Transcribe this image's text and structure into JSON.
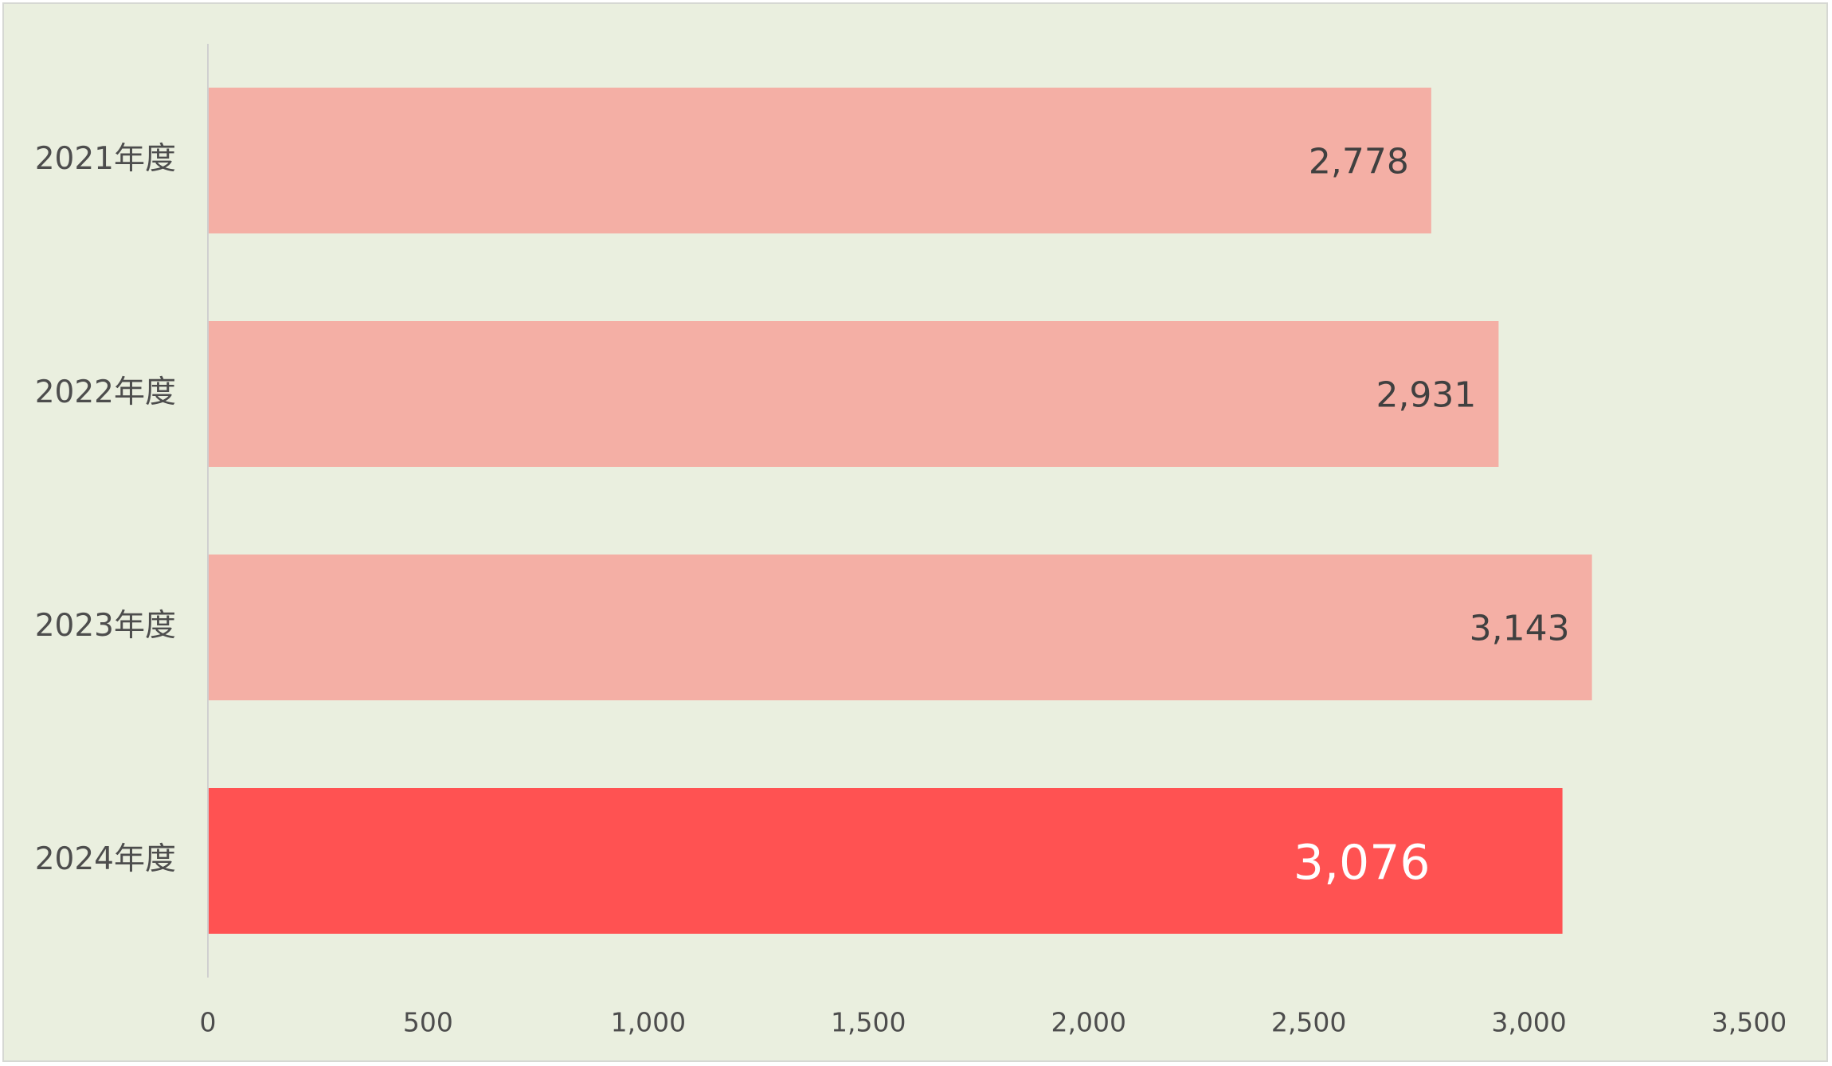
{
  "chart_data": {
    "type": "bar",
    "orientation": "horizontal",
    "categories": [
      "2021年度",
      "2022年度",
      "2023年度",
      "2024年度"
    ],
    "values": [
      2778,
      2931,
      3143,
      3076
    ],
    "data_labels": [
      "2,778",
      "2,931",
      "3,143",
      "3,076"
    ],
    "highlight_index": 3,
    "x_ticks": [
      "0",
      "500",
      "1,000",
      "1,500",
      "2,000",
      "2,500",
      "3,000",
      "3,500"
    ],
    "xlim": [
      0,
      3500
    ],
    "grid": false,
    "legend": "none",
    "colors": {
      "bar": "#F4AFA5",
      "bar_highlight": "#FF5252",
      "background": "#EAEFDF",
      "axis_line": "#D0D0D0",
      "label_text": "#404040",
      "highlight_label_text": "#FFFFFF"
    }
  }
}
